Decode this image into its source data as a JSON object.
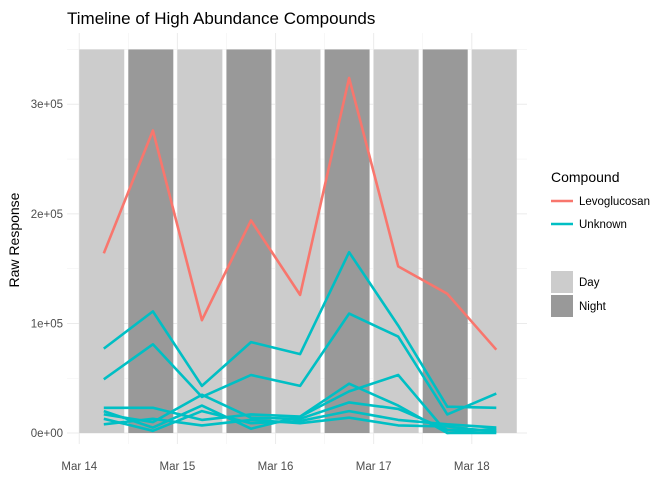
{
  "chart_data": {
    "type": "line",
    "title": "Timeline of High Abundance Compounds",
    "xlabel": "",
    "ylabel": "Raw Response",
    "x_ticks": [
      "Mar 14",
      "Mar 15",
      "Mar 16",
      "Mar 17",
      "Mar 18"
    ],
    "y_ticks": [
      "0e+00",
      "1e+05",
      "2e+05",
      "3e+05"
    ],
    "y_tick_values": [
      0,
      100000,
      200000,
      300000
    ],
    "ylim": [
      -10000,
      365000
    ],
    "xlim": [
      "2023-03-13 21:00",
      "2023-03-18 13:30"
    ],
    "grid": true,
    "theme": "minimal",
    "legend_position": "right",
    "shading": {
      "title": "",
      "top_value": 350000,
      "bands": [
        {
          "label": "Day",
          "start": "2023-03-14 00:00",
          "end": "2023-03-14 11:00",
          "color": "#cccccc"
        },
        {
          "label": "Night",
          "start": "2023-03-14 12:00",
          "end": "2023-03-14 23:00",
          "color": "#999999"
        },
        {
          "label": "Day",
          "start": "2023-03-15 00:00",
          "end": "2023-03-15 11:00",
          "color": "#cccccc"
        },
        {
          "label": "Night",
          "start": "2023-03-15 12:00",
          "end": "2023-03-15 23:00",
          "color": "#999999"
        },
        {
          "label": "Day",
          "start": "2023-03-16 00:00",
          "end": "2023-03-16 11:00",
          "color": "#cccccc"
        },
        {
          "label": "Night",
          "start": "2023-03-16 12:00",
          "end": "2023-03-16 23:00",
          "color": "#999999"
        },
        {
          "label": "Day",
          "start": "2023-03-17 00:00",
          "end": "2023-03-17 11:00",
          "color": "#cccccc"
        },
        {
          "label": "Night",
          "start": "2023-03-17 12:00",
          "end": "2023-03-17 23:00",
          "color": "#999999"
        },
        {
          "label": "Day",
          "start": "2023-03-18 00:00",
          "end": "2023-03-18 11:00",
          "color": "#cccccc"
        }
      ],
      "legend": [
        {
          "label": "Day",
          "color": "#cccccc"
        },
        {
          "label": "Night",
          "color": "#999999"
        }
      ]
    },
    "compound_legend": {
      "title": "Compound",
      "entries": [
        {
          "label": "Levoglucosan",
          "color": "#f8766d"
        },
        {
          "label": "Unknown",
          "color": "#00bfc4"
        }
      ]
    },
    "x": [
      "2023-03-14 06:00",
      "2023-03-14 18:00",
      "2023-03-15 06:00",
      "2023-03-15 18:00",
      "2023-03-16 06:00",
      "2023-03-16 18:00",
      "2023-03-17 06:00",
      "2023-03-17 18:00",
      "2023-03-18 06:00"
    ],
    "series": [
      {
        "compound": "Levoglucosan",
        "color": "#f8766d",
        "values": [
          164000,
          276000,
          103000,
          194000,
          126000,
          324000,
          152000,
          127000,
          76000
        ]
      },
      {
        "compound": "Unknown",
        "color": "#00bfc4",
        "values": [
          77000,
          111000,
          43000,
          83000,
          72000,
          165000,
          98000,
          24000,
          23000
        ]
      },
      {
        "compound": "Unknown",
        "color": "#00bfc4",
        "values": [
          49000,
          81000,
          33000,
          53000,
          43000,
          109000,
          88000,
          17000,
          36000
        ]
      },
      {
        "compound": "Unknown",
        "color": "#00bfc4",
        "values": [
          23000,
          23000,
          12000,
          17000,
          15000,
          45000,
          25000,
          0,
          4000
        ]
      },
      {
        "compound": "Unknown",
        "color": "#00bfc4",
        "values": [
          20000,
          5000,
          25000,
          4000,
          15000,
          38000,
          53000,
          0,
          0
        ]
      },
      {
        "compound": "Unknown",
        "color": "#00bfc4",
        "values": [
          17000,
          10000,
          35000,
          14000,
          13000,
          28000,
          22000,
          3000,
          2000
        ]
      },
      {
        "compound": "Unknown",
        "color": "#00bfc4",
        "values": [
          13000,
          2000,
          20000,
          9000,
          11000,
          20000,
          12000,
          8000,
          5000
        ]
      },
      {
        "compound": "Unknown",
        "color": "#00bfc4",
        "values": [
          8000,
          13000,
          7000,
          12000,
          9000,
          14000,
          7000,
          6000,
          1000
        ]
      }
    ]
  }
}
